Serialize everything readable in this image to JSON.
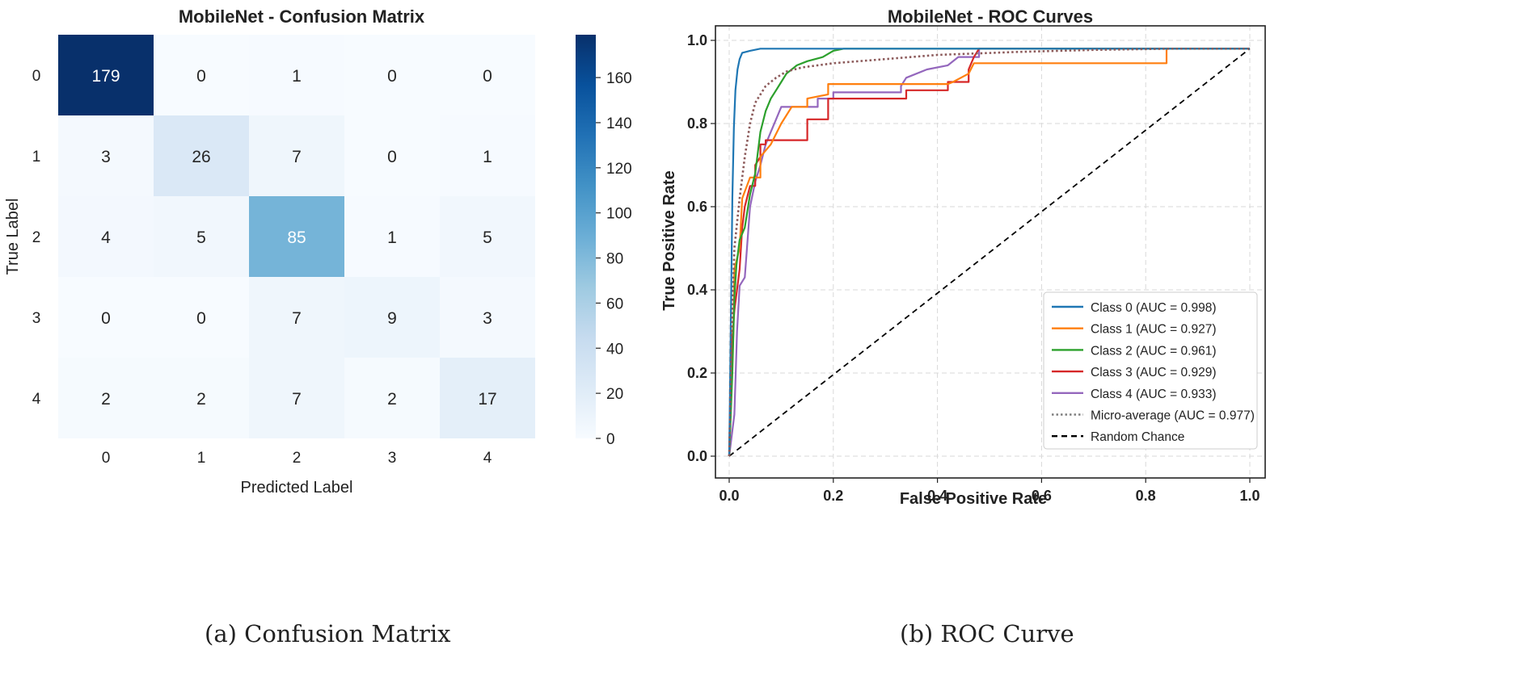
{
  "figure": {
    "caption_a": "(a) Confusion Matrix",
    "caption_b": "(b) ROC Curve"
  },
  "chart_data": [
    {
      "type": "heatmap",
      "title": "MobileNet - Confusion Matrix",
      "xlabel": "Predicted Label",
      "ylabel": "True Label",
      "x_categories": [
        "0",
        "1",
        "2",
        "3",
        "4"
      ],
      "y_categories": [
        "0",
        "1",
        "2",
        "3",
        "4"
      ],
      "values": [
        [
          179,
          0,
          1,
          0,
          0
        ],
        [
          3,
          26,
          7,
          0,
          1
        ],
        [
          4,
          5,
          85,
          1,
          5
        ],
        [
          0,
          0,
          7,
          9,
          3
        ],
        [
          2,
          2,
          7,
          2,
          17
        ]
      ],
      "colorbar": {
        "colormap": "Blues",
        "vmin": 0,
        "vmax": 179,
        "ticks": [
          "0",
          "20",
          "40",
          "60",
          "80",
          "100",
          "120",
          "140",
          "160"
        ]
      }
    },
    {
      "type": "line",
      "title": "MobileNet - ROC Curves",
      "xlabel": "False Positive Rate",
      "ylabel": "True Positive Rate",
      "xlim": [
        0,
        1
      ],
      "ylim": [
        0,
        1
      ],
      "x_ticks": [
        "0.0",
        "0.2",
        "0.4",
        "0.6",
        "0.8",
        "1.0"
      ],
      "y_ticks": [
        "0.0",
        "0.2",
        "0.4",
        "0.6",
        "0.8",
        "1.0"
      ],
      "grid": true,
      "legend_position": "lower-right",
      "series": [
        {
          "name": "Class 0 (AUC = 0.998)",
          "color": "#1f77b4",
          "style": "solid",
          "points": [
            [
              0,
              0
            ],
            [
              0.003,
              0.3
            ],
            [
              0.006,
              0.62
            ],
            [
              0.009,
              0.79
            ],
            [
              0.012,
              0.88
            ],
            [
              0.016,
              0.93
            ],
            [
              0.02,
              0.955
            ],
            [
              0.025,
              0.97
            ],
            [
              0.04,
              0.975
            ],
            [
              0.06,
              0.98
            ],
            [
              0.15,
              0.98
            ],
            [
              1,
              0.98
            ]
          ]
        },
        {
          "name": "Class 1 (AUC = 0.927)",
          "color": "#ff7f0e",
          "style": "solid",
          "points": [
            [
              0,
              0
            ],
            [
              0.008,
              0.3
            ],
            [
              0.01,
              0.45
            ],
            [
              0.02,
              0.5
            ],
            [
              0.025,
              0.62
            ],
            [
              0.04,
              0.67
            ],
            [
              0.06,
              0.67
            ],
            [
              0.06,
              0.72
            ],
            [
              0.08,
              0.75
            ],
            [
              0.1,
              0.8
            ],
            [
              0.12,
              0.84
            ],
            [
              0.15,
              0.84
            ],
            [
              0.15,
              0.86
            ],
            [
              0.19,
              0.87
            ],
            [
              0.19,
              0.895
            ],
            [
              0.42,
              0.895
            ],
            [
              0.43,
              0.9
            ],
            [
              0.46,
              0.92
            ],
            [
              0.47,
              0.945
            ],
            [
              0.84,
              0.945
            ],
            [
              0.84,
              0.98
            ],
            [
              1,
              0.98
            ]
          ]
        },
        {
          "name": "Class 2 (AUC = 0.961)",
          "color": "#2ca02c",
          "style": "solid",
          "points": [
            [
              0,
              0
            ],
            [
              0.006,
              0.2
            ],
            [
              0.01,
              0.38
            ],
            [
              0.014,
              0.46
            ],
            [
              0.02,
              0.52
            ],
            [
              0.03,
              0.55
            ],
            [
              0.04,
              0.63
            ],
            [
              0.05,
              0.68
            ],
            [
              0.06,
              0.78
            ],
            [
              0.07,
              0.83
            ],
            [
              0.08,
              0.86
            ],
            [
              0.09,
              0.88
            ],
            [
              0.1,
              0.9
            ],
            [
              0.11,
              0.92
            ],
            [
              0.13,
              0.94
            ],
            [
              0.15,
              0.95
            ],
            [
              0.18,
              0.96
            ],
            [
              0.2,
              0.975
            ],
            [
              0.22,
              0.98
            ],
            [
              1,
              0.98
            ]
          ]
        },
        {
          "name": "Class 3 (AUC = 0.929)",
          "color": "#d62728",
          "style": "solid",
          "points": [
            [
              0,
              0
            ],
            [
              0.004,
              0.25
            ],
            [
              0.01,
              0.35
            ],
            [
              0.02,
              0.45
            ],
            [
              0.025,
              0.55
            ],
            [
              0.03,
              0.6
            ],
            [
              0.04,
              0.65
            ],
            [
              0.05,
              0.65
            ],
            [
              0.05,
              0.7
            ],
            [
              0.06,
              0.72
            ],
            [
              0.06,
              0.75
            ],
            [
              0.07,
              0.75
            ],
            [
              0.07,
              0.76
            ],
            [
              0.15,
              0.76
            ],
            [
              0.15,
              0.81
            ],
            [
              0.19,
              0.81
            ],
            [
              0.19,
              0.86
            ],
            [
              0.34,
              0.86
            ],
            [
              0.34,
              0.88
            ],
            [
              0.42,
              0.88
            ],
            [
              0.42,
              0.9
            ],
            [
              0.46,
              0.9
            ],
            [
              0.46,
              0.93
            ],
            [
              0.47,
              0.96
            ],
            [
              0.48,
              0.98
            ],
            [
              1,
              0.98
            ]
          ]
        },
        {
          "name": "Class 4 (AUC = 0.933)",
          "color": "#9467bd",
          "style": "solid",
          "points": [
            [
              0,
              0
            ],
            [
              0.01,
              0.1
            ],
            [
              0.015,
              0.3
            ],
            [
              0.02,
              0.41
            ],
            [
              0.03,
              0.43
            ],
            [
              0.04,
              0.6
            ],
            [
              0.05,
              0.66
            ],
            [
              0.06,
              0.7
            ],
            [
              0.07,
              0.75
            ],
            [
              0.08,
              0.78
            ],
            [
              0.09,
              0.81
            ],
            [
              0.1,
              0.84
            ],
            [
              0.17,
              0.84
            ],
            [
              0.17,
              0.86
            ],
            [
              0.2,
              0.86
            ],
            [
              0.2,
              0.875
            ],
            [
              0.33,
              0.875
            ],
            [
              0.33,
              0.89
            ],
            [
              0.34,
              0.91
            ],
            [
              0.38,
              0.93
            ],
            [
              0.42,
              0.94
            ],
            [
              0.44,
              0.96
            ],
            [
              0.48,
              0.96
            ],
            [
              0.48,
              0.98
            ],
            [
              1,
              0.98
            ]
          ]
        },
        {
          "name": "Micro-average (AUC = 0.977)",
          "color": "#7f7f7f",
          "style": "dotted",
          "points": [
            [
              0,
              0
            ],
            [
              0.005,
              0.3
            ],
            [
              0.01,
              0.5
            ],
            [
              0.02,
              0.62
            ],
            [
              0.03,
              0.72
            ],
            [
              0.04,
              0.8
            ],
            [
              0.05,
              0.85
            ],
            [
              0.07,
              0.89
            ],
            [
              0.09,
              0.91
            ],
            [
              0.11,
              0.925
            ],
            [
              0.14,
              0.935
            ],
            [
              0.2,
              0.945
            ],
            [
              0.3,
              0.955
            ],
            [
              0.4,
              0.965
            ],
            [
              0.55,
              0.972
            ],
            [
              0.7,
              0.977
            ],
            [
              0.85,
              0.98
            ],
            [
              1,
              0.98
            ]
          ]
        },
        {
          "name": "Random Chance",
          "color": "#000000",
          "style": "dashed",
          "points": [
            [
              0,
              0
            ],
            [
              1,
              0.98
            ]
          ]
        }
      ]
    }
  ]
}
